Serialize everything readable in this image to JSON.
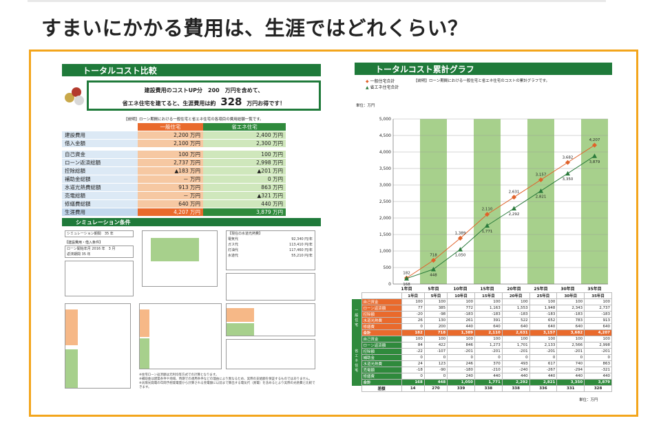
{
  "headline": "すまいにかかる費用は、生涯ではどれくらい？",
  "left": {
    "title": "トータルコスト比較",
    "callout_line1": "建設費用のコストUP分　200　万円を含めて、",
    "callout_line2a": "省エネ住宅を建てると、生涯費用は約",
    "callout_big": "328",
    "callout_line2b": "万円お得です！",
    "note": "【説明】ローン期間における一般住宅と省エネ住宅の各項目の費用総額一覧です。",
    "col_general": "一般住宅",
    "col_eco": "省エネ住宅",
    "rows": [
      {
        "label": "建設費用",
        "general": "2,200 万円",
        "eco": "2,400 万円"
      },
      {
        "label": "借入金額",
        "general": "2,100 万円",
        "eco": "2,300 万円"
      },
      {
        "label": "",
        "general": "",
        "eco": ""
      },
      {
        "label": "自己資金",
        "general": "100 万円",
        "eco": "100 万円"
      },
      {
        "label": "ローン返済総額",
        "general": "2,737 万円",
        "eco": "2,998 万円"
      },
      {
        "label": "控除総額",
        "general": "▲183 万円",
        "eco": "▲201 万円"
      },
      {
        "label": "補助金総額",
        "general": "－ 万円",
        "eco": "0 万円"
      },
      {
        "label": "水道光熱費総額",
        "general": "913 万円",
        "eco": "863 万円"
      },
      {
        "label": "売電総額",
        "general": "－ 万円",
        "eco": "▲321 万円"
      },
      {
        "label": "修繕費総額",
        "general": "640 万円",
        "eco": "440 万円"
      },
      {
        "label": "生涯費用",
        "general": "4,207 万円",
        "eco": "3,879 万円"
      }
    ],
    "sim_title": "シミュレーション条件",
    "sim_small": [
      {
        "label": "シミュレーション期間",
        "value": "35 年"
      },
      {
        "label": "【建設費用・借入条件】",
        "value": ""
      },
      {
        "label": "ローン開始年月",
        "value": "2016 年　3 月"
      },
      {
        "label": "返済期間",
        "value": "35 年"
      }
    ],
    "energy_title": "【現在の水道光熱費】",
    "energy_rows": [
      {
        "label": "電気代",
        "value": "92,340 円/年"
      },
      {
        "label": "ガス代",
        "value": "113,410 円/年"
      },
      {
        "label": "灯油代",
        "value": "117,460 円/年"
      },
      {
        "label": "水道代",
        "value": "55,210 円/年"
      }
    ],
    "footnotes": [
      "※住宅ローン返済額は元利均等方式での計算となります。",
      "※補助金は建築条件や地域、時期での適用条件などの理由により異なるため、実際の支給額を保証するものではありません。",
      "※太陽光発電の年間予想発電量から計算される売電額に以前まで算出する電気代（買電）を含めるとより実際の光熱費と比較できます。"
    ]
  },
  "right": {
    "title": "トータルコスト累計グラフ",
    "legend_general": "一般住宅合計",
    "legend_eco": "省エネ住宅合計",
    "note": "【説明】ローン期間における一般住宅と省エネ住宅のコストの累計グラフです。",
    "unit_label": "単位：万円",
    "table_unit": "単位：万円",
    "table_headers": [
      "",
      "1年目",
      "5年目",
      "10年目",
      "15年目",
      "20年目",
      "25年目",
      "30年目",
      "35年目"
    ],
    "side_general": "一般住宅",
    "side_eco": "省エネ住宅",
    "general_rows": [
      {
        "label": "自己資金",
        "values": [
          "100",
          "100",
          "100",
          "100",
          "100",
          "100",
          "100",
          "100"
        ]
      },
      {
        "label": "ローン返済額",
        "values": [
          "77",
          "385",
          "772",
          "1,163",
          "1,553",
          "1,948",
          "2,343",
          "2,737"
        ]
      },
      {
        "label": "控除額",
        "values": [
          "-20",
          "-98",
          "-183",
          "-183",
          "-183",
          "-183",
          "-183",
          "-183"
        ]
      },
      {
        "label": "水道光熱費",
        "values": [
          "26",
          "130",
          "261",
          "391",
          "522",
          "652",
          "783",
          "913"
        ]
      },
      {
        "label": "修繕費",
        "values": [
          "0",
          "200",
          "440",
          "640",
          "640",
          "640",
          "640",
          "640"
        ]
      }
    ],
    "general_sum": {
      "label": "合計",
      "values": [
        "182",
        "718",
        "1,389",
        "2,110",
        "2,631",
        "3,157",
        "3,682",
        "4,207"
      ]
    },
    "eco_rows": [
      {
        "label": "自己資金",
        "values": [
          "100",
          "100",
          "100",
          "100",
          "100",
          "100",
          "100",
          "100"
        ]
      },
      {
        "label": "ローン返済額",
        "values": [
          "84",
          "422",
          "846",
          "1,273",
          "1,701",
          "2,133",
          "2,566",
          "2,998"
        ]
      },
      {
        "label": "控除額",
        "values": [
          "-22",
          "-107",
          "-201",
          "-201",
          "-201",
          "-201",
          "-201",
          "-201"
        ]
      },
      {
        "label": "補助金",
        "values": [
          "0",
          "0",
          "0",
          "0",
          "0",
          "0",
          "0",
          "0"
        ]
      },
      {
        "label": "水道光熱費",
        "values": [
          "24",
          "123",
          "246",
          "370",
          "493",
          "617",
          "740",
          "863"
        ]
      },
      {
        "label": "売電額",
        "values": [
          "-18",
          "-90",
          "-180",
          "-210",
          "-240",
          "-267",
          "-294",
          "-321"
        ]
      },
      {
        "label": "修繕費",
        "values": [
          "0",
          "0",
          "240",
          "440",
          "440",
          "440",
          "440",
          "440"
        ]
      }
    ],
    "eco_sum": {
      "label": "合計",
      "values": [
        "168",
        "448",
        "1,050",
        "1,771",
        "2,292",
        "2,821",
        "3,350",
        "3,879"
      ]
    },
    "diff_row": {
      "label": "差額",
      "values": [
        "14",
        "270",
        "339",
        "338",
        "338",
        "336",
        "331",
        "328"
      ]
    }
  },
  "chart_data": {
    "type": "line",
    "title": "トータルコスト累計グラフ",
    "ylabel": "単位：万円",
    "categories": [
      "1年目",
      "5年目",
      "10年目",
      "15年目",
      "20年目",
      "25年目",
      "30年目",
      "35年目"
    ],
    "ylim": [
      0,
      5000
    ],
    "yticks": [
      "0",
      "500",
      "1,000",
      "1,500",
      "2,000",
      "2,500",
      "3,000",
      "3,500",
      "4,000",
      "4,500",
      "5,000"
    ],
    "series": [
      {
        "name": "一般住宅合計",
        "values": [
          182,
          718,
          1389,
          2110,
          2631,
          3157,
          3682,
          4207
        ],
        "labels": [
          "182",
          "718",
          "1,389",
          "2,110",
          "2,631",
          "3,157",
          "3,682",
          "4,207"
        ],
        "color": "#e0622a"
      },
      {
        "name": "省エネ住宅合計",
        "values": [
          168,
          448,
          1050,
          1771,
          2292,
          2821,
          3350,
          3879
        ],
        "labels": [
          "168",
          "448",
          "1,050",
          "1,771",
          "2,292",
          "2,821",
          "3,350",
          "3,879"
        ],
        "color": "#2a7a3b"
      }
    ],
    "band_color": "#a7d08c"
  }
}
